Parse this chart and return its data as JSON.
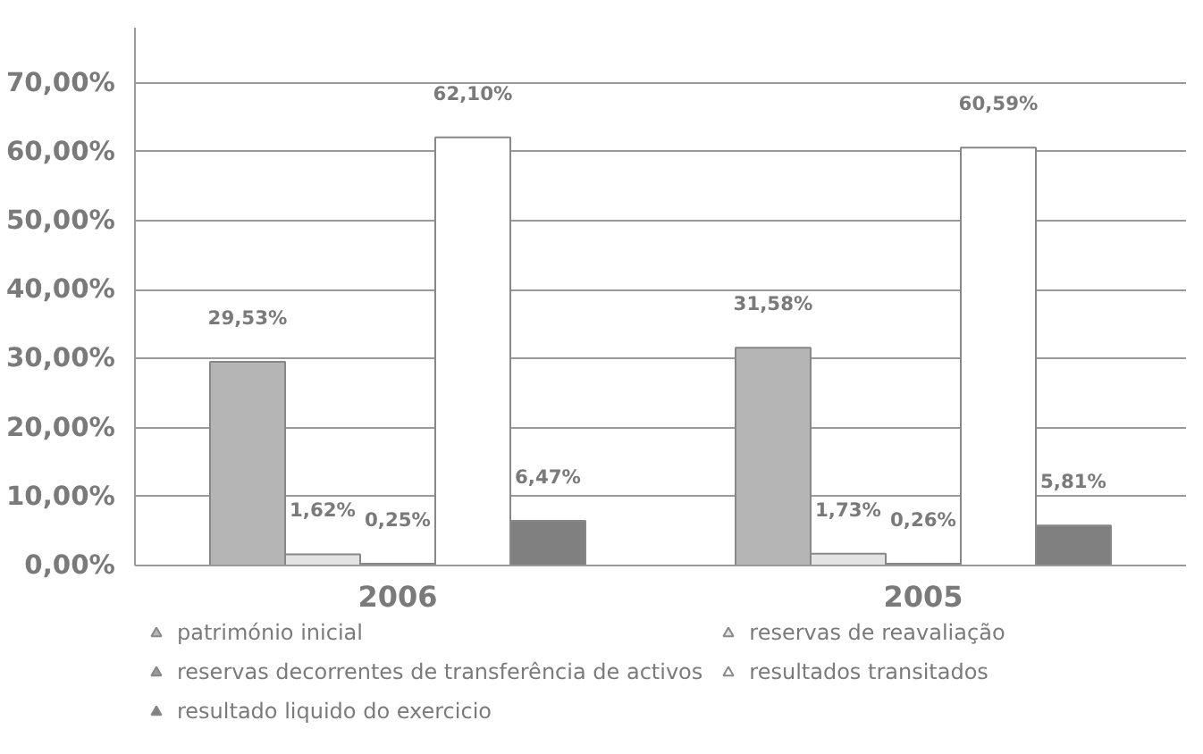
{
  "chart_data": {
    "type": "bar",
    "categories": [
      "2006",
      "2005"
    ],
    "series": [
      {
        "name": "património inicial",
        "color": "#b5b5b5",
        "values": [
          29.53,
          31.58
        ],
        "value_labels": [
          "29,53%",
          "31,58%"
        ]
      },
      {
        "name": "reservas de reavaliação",
        "color": "#e3e3e3",
        "values": [
          1.62,
          1.73
        ],
        "value_labels": [
          "1,62%",
          "1,73%"
        ]
      },
      {
        "name": "reservas decorrentes de transferência de activos",
        "color": "#9a9a9a",
        "values": [
          0.25,
          0.26
        ],
        "value_labels": [
          "0,25%",
          "0,26%"
        ]
      },
      {
        "name": "resultados transitados",
        "color": "#ffffff",
        "values": [
          62.1,
          60.59
        ],
        "value_labels": [
          "62,10%",
          "60,59%"
        ]
      },
      {
        "name": "resultado liquido do exercicio",
        "color": "#808080",
        "values": [
          6.47,
          5.81
        ],
        "value_labels": [
          "6,47%",
          "5,81%"
        ]
      }
    ],
    "ylim": [
      0,
      78
    ],
    "yticks": [
      {
        "value": 0,
        "label": "0,00%"
      },
      {
        "value": 10,
        "label": "10,00%"
      },
      {
        "value": 20,
        "label": "20,00%"
      },
      {
        "value": 30,
        "label": "30,00%"
      },
      {
        "value": 40,
        "label": "40,00%"
      },
      {
        "value": 50,
        "label": "50,00%"
      },
      {
        "value": 60,
        "label": "60,00%"
      },
      {
        "value": 70,
        "label": "70,00%"
      }
    ],
    "grid": "y",
    "legend": "bottom"
  }
}
